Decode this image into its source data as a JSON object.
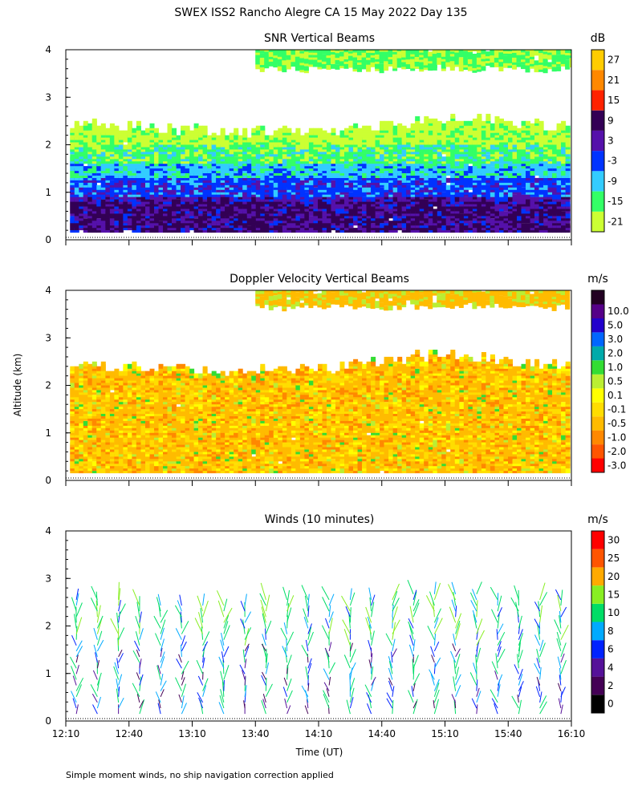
{
  "figure": {
    "title": "SWEX ISS2 Rancho Alegre CA  15 May 2022 Day 135",
    "shared_ylabel": "Altitude (km)",
    "shared_xlabel": "Time (UT)",
    "footnote": "Simple moment winds, no ship navigation correction applied"
  },
  "chart_data": [
    {
      "type": "heatmap",
      "title": "SNR Vertical Beams",
      "colorbar_unit": "dB",
      "x_ticks": [
        "12:10",
        "12:40",
        "13:10",
        "13:40",
        "14:10",
        "14:40",
        "15:10",
        "15:40",
        "16:10"
      ],
      "xlim_minutes_utc": [
        730,
        970
      ],
      "y_ticks": [
        "0",
        "1",
        "2",
        "3",
        "4"
      ],
      "ylim_km": [
        0,
        4
      ],
      "colorbar_levels": [
        "-21",
        "-15",
        "-9",
        "-3",
        "3",
        "9",
        "15",
        "21",
        "27"
      ],
      "colorbar_colors": [
        "#ccff33",
        "#33ff66",
        "#33ccff",
        "#0033ff",
        "#5511aa",
        "#330055",
        "#ff2200",
        "#ff8800",
        "#ffcc00"
      ],
      "profile": [
        {
          "height_km": 0.2,
          "snr_db": 12
        },
        {
          "height_km": 0.5,
          "snr_db": 9
        },
        {
          "height_km": 0.8,
          "snr_db": 3
        },
        {
          "height_km": 1.1,
          "snr_db": -3
        },
        {
          "height_km": 1.4,
          "snr_db": -12
        },
        {
          "height_km": 1.7,
          "snr_db": -16
        },
        {
          "height_km": 2.0,
          "snr_db": -12
        },
        {
          "height_km": 2.3,
          "snr_db": -18
        },
        {
          "height_km": 3.6,
          "snr_db": -14
        },
        {
          "height_km": 3.9,
          "snr_db": -16
        }
      ],
      "echo_top_km": [
        {
          "time": "12:10",
          "value": 2.4
        },
        {
          "time": "13:10",
          "value": 2.25
        },
        {
          "time": "14:10",
          "value": 2.2
        },
        {
          "time": "15:10",
          "value": 2.5
        },
        {
          "time": "16:10",
          "value": 2.3
        }
      ],
      "upper_layer_km": [
        3.5,
        4.0
      ],
      "upper_layer_time": [
        "13:40",
        "16:10"
      ]
    },
    {
      "type": "heatmap",
      "title": "Doppler Velocity Vertical Beams",
      "colorbar_unit": "m/s",
      "x_ticks": [
        "12:10",
        "12:40",
        "13:10",
        "13:40",
        "14:10",
        "14:40",
        "15:10",
        "15:40",
        "16:10"
      ],
      "xlim_minutes_utc": [
        730,
        970
      ],
      "y_ticks": [
        "0",
        "1",
        "2",
        "3",
        "4"
      ],
      "ylim_km": [
        0,
        4
      ],
      "colorbar_levels": [
        "-3.0",
        "-2.0",
        "-1.0",
        "-0.5",
        "-0.1",
        "0.1",
        "0.5",
        "1.0",
        "2.0",
        "3.0",
        "5.0",
        "10.0"
      ],
      "colorbar_colors": [
        "#ff0000",
        "#ff5500",
        "#ff8800",
        "#ffbb00",
        "#ffdd00",
        "#ffff00",
        "#bbee33",
        "#33dd33",
        "#00aaaa",
        "#0066ff",
        "#2200cc",
        "#550088",
        "#220022"
      ],
      "typical_velocity_ms": -0.5,
      "echo_top_km": [
        {
          "time": "12:10",
          "value": 2.4
        },
        {
          "time": "13:10",
          "value": 2.25
        },
        {
          "time": "14:10",
          "value": 2.3
        },
        {
          "time": "15:10",
          "value": 2.6
        },
        {
          "time": "16:10",
          "value": 2.3
        }
      ]
    },
    {
      "type": "wind_barbs",
      "title": "Winds (10 minutes)",
      "colorbar_unit": "m/s",
      "x_ticks": [
        "12:10",
        "12:40",
        "13:10",
        "13:40",
        "14:10",
        "14:40",
        "15:10",
        "15:40",
        "16:10"
      ],
      "xlim_minutes_utc": [
        730,
        970
      ],
      "y_ticks": [
        "0",
        "1",
        "2",
        "3",
        "4"
      ],
      "ylim_km": [
        0,
        4
      ],
      "colorbar_levels": [
        "0",
        "2",
        "4",
        "6",
        "8",
        "10",
        "15",
        "20",
        "25",
        "30"
      ],
      "colorbar_colors": [
        "#000000",
        "#440055",
        "#551199",
        "#0022ff",
        "#00aaff",
        "#00dd66",
        "#88ee22",
        "#ffaa00",
        "#ff5500",
        "#ff0000"
      ],
      "profile_interval_min": 10,
      "profile_top_km": [
        {
          "time": "12:10",
          "value": 2.6
        },
        {
          "time": "13:10",
          "value": 2.5
        },
        {
          "time": "14:10",
          "value": 2.6
        },
        {
          "time": "15:10",
          "value": 2.7
        },
        {
          "time": "16:10",
          "value": 2.6
        }
      ]
    }
  ]
}
